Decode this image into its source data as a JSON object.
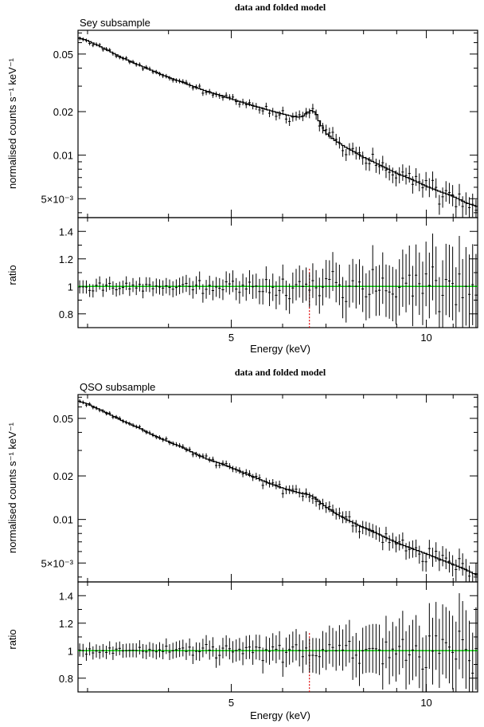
{
  "chart_data": [
    {
      "type": "line",
      "title": "data and folded model",
      "subtitle": "Sey subsample",
      "xlabel": "Energy (keV)",
      "xscale": "log",
      "xlim": [
        2.9,
        12.0
      ],
      "xticks": [
        "5",
        "10"
      ],
      "grid": false,
      "spectrum": {
        "ylabel": "normalised counts s⁻¹ keV⁻¹",
        "yscale": "log",
        "ylim": [
          0.0037,
          0.073
        ],
        "yticks": [
          "0.05",
          "0.02",
          "0.01",
          "5×10⁻³"
        ],
        "model": {
          "x": [
            2.9,
            3.0,
            3.2,
            3.4,
            3.6,
            3.8,
            4.0,
            4.2,
            4.4,
            4.6,
            4.8,
            5.0,
            5.2,
            5.4,
            5.6,
            5.8,
            6.0,
            6.2,
            6.35,
            6.45,
            6.55,
            6.65,
            6.75,
            6.85,
            7.0,
            7.2,
            7.5,
            8.0,
            8.5,
            9.0,
            9.5,
            10.0,
            10.5,
            11.0,
            11.5,
            12.0
          ],
          "y": [
            0.065,
            0.062,
            0.054,
            0.047,
            0.042,
            0.038,
            0.0345,
            0.032,
            0.0295,
            0.0275,
            0.026,
            0.0245,
            0.0232,
            0.022,
            0.021,
            0.0201,
            0.0193,
            0.0186,
            0.0183,
            0.0186,
            0.0197,
            0.0204,
            0.0196,
            0.0168,
            0.0142,
            0.0128,
            0.0114,
            0.0097,
            0.0085,
            0.0075,
            0.0068,
            0.0061,
            0.0056,
            0.0052,
            0.0047,
            0.0044
          ]
        }
      },
      "ratio": {
        "ylabel": "ratio",
        "ylim": [
          0.7,
          1.5
        ],
        "yticks": [
          "1.4",
          "1.2",
          "1",
          "0.8"
        ],
        "unity_line": 1.0,
        "line_energy": 6.6
      }
    },
    {
      "type": "line",
      "title": "data and folded model",
      "subtitle": "QSO subsample",
      "xlabel": "Energy (keV)",
      "xscale": "log",
      "xlim": [
        2.9,
        12.0
      ],
      "xticks": [
        "5",
        "10"
      ],
      "grid": false,
      "spectrum": {
        "ylabel": "normalised counts s⁻¹ keV⁻¹",
        "yscale": "log",
        "ylim": [
          0.0037,
          0.073
        ],
        "yticks": [
          "0.05",
          "0.02",
          "0.01",
          "5×10⁻³"
        ],
        "model": {
          "x": [
            2.9,
            3.0,
            3.2,
            3.4,
            3.6,
            3.8,
            4.0,
            4.2,
            4.4,
            4.6,
            4.8,
            5.0,
            5.2,
            5.4,
            5.6,
            5.8,
            6.0,
            6.2,
            6.4,
            6.5,
            6.6,
            6.7,
            6.85,
            7.0,
            7.3,
            7.6,
            8.0,
            8.5,
            9.0,
            9.5,
            10.0,
            10.5,
            11.0,
            11.5,
            12.0
          ],
          "y": [
            0.066,
            0.063,
            0.055,
            0.048,
            0.043,
            0.038,
            0.0345,
            0.0315,
            0.0285,
            0.026,
            0.0245,
            0.0228,
            0.0212,
            0.0198,
            0.0185,
            0.0174,
            0.0165,
            0.0158,
            0.0152,
            0.015,
            0.0148,
            0.0143,
            0.0132,
            0.0122,
            0.0108,
            0.0098,
            0.0088,
            0.0078,
            0.0069,
            0.0063,
            0.0058,
            0.0053,
            0.0049,
            0.0045,
            0.0041
          ]
        }
      },
      "ratio": {
        "ylabel": "ratio",
        "ylim": [
          0.7,
          1.5
        ],
        "yticks": [
          "1.4",
          "1.2",
          "1",
          "0.8"
        ],
        "unity_line": 1.0,
        "line_energy": 6.6
      }
    }
  ]
}
